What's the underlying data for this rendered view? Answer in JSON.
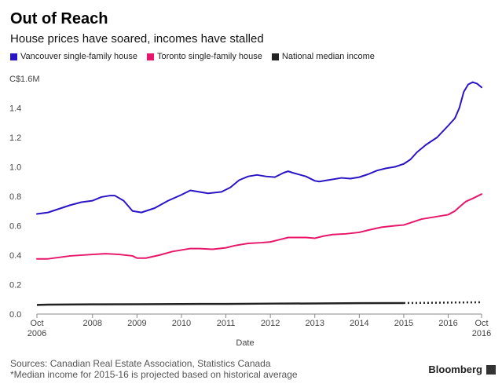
{
  "header": {
    "title": "Out of Reach",
    "subtitle": "House prices have soared, incomes have stalled"
  },
  "footer": {
    "source": "Sources: Canadian Real Estate Association, Statistics Canada",
    "note": "*Median income for 2015-16 is projected based on historical average",
    "brand": "Bloomberg"
  },
  "chart_data": {
    "type": "line",
    "title": "Out of Reach",
    "subtitle": "House prices have soared, incomes have stalled",
    "xlabel": "Date",
    "ylabel": "",
    "y_unit_prefix": "C$",
    "y_unit_suffix": "M",
    "xlim": [
      2006.75,
      2016.75
    ],
    "ylim": [
      0,
      1.6
    ],
    "grid": false,
    "legend_position": "top",
    "x_ticks": [
      {
        "value": 2006.75,
        "label": "Oct",
        "sublabel": "2006"
      },
      {
        "value": 2008,
        "label": "2008",
        "sublabel": ""
      },
      {
        "value": 2009,
        "label": "2009",
        "sublabel": ""
      },
      {
        "value": 2010,
        "label": "2010",
        "sublabel": ""
      },
      {
        "value": 2011,
        "label": "2011",
        "sublabel": ""
      },
      {
        "value": 2012,
        "label": "2012",
        "sublabel": ""
      },
      {
        "value": 2013,
        "label": "2013",
        "sublabel": ""
      },
      {
        "value": 2014,
        "label": "2014",
        "sublabel": ""
      },
      {
        "value": 2015,
        "label": "2015",
        "sublabel": ""
      },
      {
        "value": 2016,
        "label": "2016",
        "sublabel": ""
      },
      {
        "value": 2016.75,
        "label": "Oct",
        "sublabel": "2016"
      }
    ],
    "y_ticks": [
      {
        "value": 0,
        "label": "0.0"
      },
      {
        "value": 0.2,
        "label": "0.2"
      },
      {
        "value": 0.4,
        "label": "0.4"
      },
      {
        "value": 0.6,
        "label": "0.6"
      },
      {
        "value": 0.8,
        "label": "0.8"
      },
      {
        "value": 1.0,
        "label": "1.0"
      },
      {
        "value": 1.2,
        "label": "1.2"
      },
      {
        "value": 1.4,
        "label": "1.4"
      },
      {
        "value": 1.6,
        "label": "C$1.6M"
      }
    ],
    "series": [
      {
        "name": "Vancouver single-family house",
        "color": "#2a14c7",
        "x": [
          2006.75,
          2007.0,
          2007.5,
          2007.75,
          2008.0,
          2008.2,
          2008.4,
          2008.5,
          2008.7,
          2008.9,
          2009.1,
          2009.4,
          2009.7,
          2010.0,
          2010.2,
          2010.4,
          2010.6,
          2010.9,
          2011.1,
          2011.3,
          2011.5,
          2011.7,
          2011.9,
          2012.1,
          2012.3,
          2012.4,
          2012.5,
          2012.8,
          2013.0,
          2013.1,
          2013.3,
          2013.6,
          2013.8,
          2014.0,
          2014.2,
          2014.4,
          2014.6,
          2014.8,
          2015.0,
          2015.15,
          2015.3,
          2015.5,
          2015.75,
          2016.0,
          2016.15,
          2016.25,
          2016.35,
          2016.45,
          2016.55,
          2016.65,
          2016.75
        ],
        "values": [
          0.68,
          0.69,
          0.74,
          0.76,
          0.77,
          0.795,
          0.805,
          0.805,
          0.77,
          0.7,
          0.69,
          0.72,
          0.77,
          0.81,
          0.84,
          0.83,
          0.82,
          0.83,
          0.86,
          0.91,
          0.935,
          0.945,
          0.935,
          0.93,
          0.96,
          0.97,
          0.96,
          0.935,
          0.905,
          0.9,
          0.91,
          0.925,
          0.92,
          0.93,
          0.95,
          0.975,
          0.99,
          1.0,
          1.02,
          1.05,
          1.1,
          1.15,
          1.2,
          1.28,
          1.33,
          1.4,
          1.51,
          1.56,
          1.575,
          1.565,
          1.54
        ]
      },
      {
        "name": "Toronto single-family house",
        "color": "#e8166b",
        "x": [
          2006.75,
          2007.0,
          2007.5,
          2008.0,
          2008.3,
          2008.6,
          2008.9,
          2009.0,
          2009.2,
          2009.5,
          2009.8,
          2010.0,
          2010.2,
          2010.4,
          2010.7,
          2011.0,
          2011.2,
          2011.5,
          2011.8,
          2012.0,
          2012.2,
          2012.4,
          2012.6,
          2012.8,
          2013.0,
          2013.2,
          2013.4,
          2013.7,
          2014.0,
          2014.2,
          2014.5,
          2014.8,
          2015.0,
          2015.2,
          2015.4,
          2015.6,
          2015.8,
          2016.0,
          2016.15,
          2016.3,
          2016.4,
          2016.55,
          2016.75
        ],
        "values": [
          0.375,
          0.375,
          0.395,
          0.405,
          0.41,
          0.405,
          0.395,
          0.38,
          0.38,
          0.4,
          0.425,
          0.435,
          0.445,
          0.445,
          0.44,
          0.45,
          0.465,
          0.48,
          0.485,
          0.49,
          0.505,
          0.52,
          0.52,
          0.52,
          0.515,
          0.53,
          0.54,
          0.545,
          0.555,
          0.57,
          0.59,
          0.6,
          0.605,
          0.625,
          0.645,
          0.655,
          0.665,
          0.675,
          0.7,
          0.74,
          0.765,
          0.785,
          0.815
        ]
      },
      {
        "name": "National median income",
        "color": "#222222",
        "projected_from": 2015,
        "x": [
          2006.75,
          2007.0,
          2008.0,
          2009.0,
          2010.0,
          2011.0,
          2012.0,
          2013.0,
          2014.0,
          2015.0,
          2015.5,
          2016.0,
          2016.75
        ],
        "values": [
          0.062,
          0.064,
          0.066,
          0.067,
          0.068,
          0.069,
          0.071,
          0.072,
          0.074,
          0.075,
          0.076,
          0.078,
          0.08
        ]
      }
    ]
  }
}
